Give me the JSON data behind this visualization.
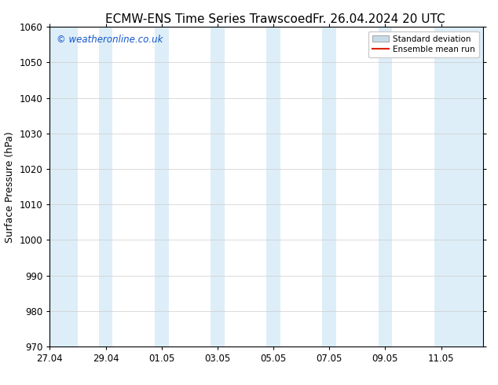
{
  "title_left": "ECMW-ENS Time Series Trawscoed",
  "title_right": "Fr. 26.04.2024 20 UTC",
  "ylabel": "Surface Pressure (hPa)",
  "ylim": [
    970,
    1060
  ],
  "yticks": [
    970,
    980,
    990,
    1000,
    1010,
    1020,
    1030,
    1040,
    1050,
    1060
  ],
  "xtick_labels": [
    "27.04",
    "29.04",
    "01.05",
    "03.05",
    "05.05",
    "07.05",
    "09.05",
    "11.05"
  ],
  "xtick_positions": [
    0,
    2,
    4,
    6,
    8,
    10,
    12,
    14
  ],
  "xlim": [
    0,
    15.5
  ],
  "shaded_bands": [
    {
      "x_start": -0.25,
      "x_end": 1.0
    },
    {
      "x_start": 1.75,
      "x_end": 2.25
    },
    {
      "x_start": 3.75,
      "x_end": 4.25
    },
    {
      "x_start": 5.75,
      "x_end": 6.25
    },
    {
      "x_start": 7.75,
      "x_end": 8.25
    },
    {
      "x_start": 9.75,
      "x_end": 10.25
    },
    {
      "x_start": 11.75,
      "x_end": 12.25
    },
    {
      "x_start": 13.75,
      "x_end": 15.5
    }
  ],
  "band_color": "#ddeef8",
  "watermark_text": "© weatheronline.co.uk",
  "watermark_color": "#1155cc",
  "legend_std_label": "Standard deviation",
  "legend_mean_label": "Ensemble mean run",
  "legend_std_facecolor": "#c8dce8",
  "legend_std_edgecolor": "#aaaaaa",
  "legend_mean_color": "#dd2200",
  "background_color": "#ffffff",
  "title_fontsize": 11,
  "axis_label_fontsize": 9,
  "tick_fontsize": 8.5
}
